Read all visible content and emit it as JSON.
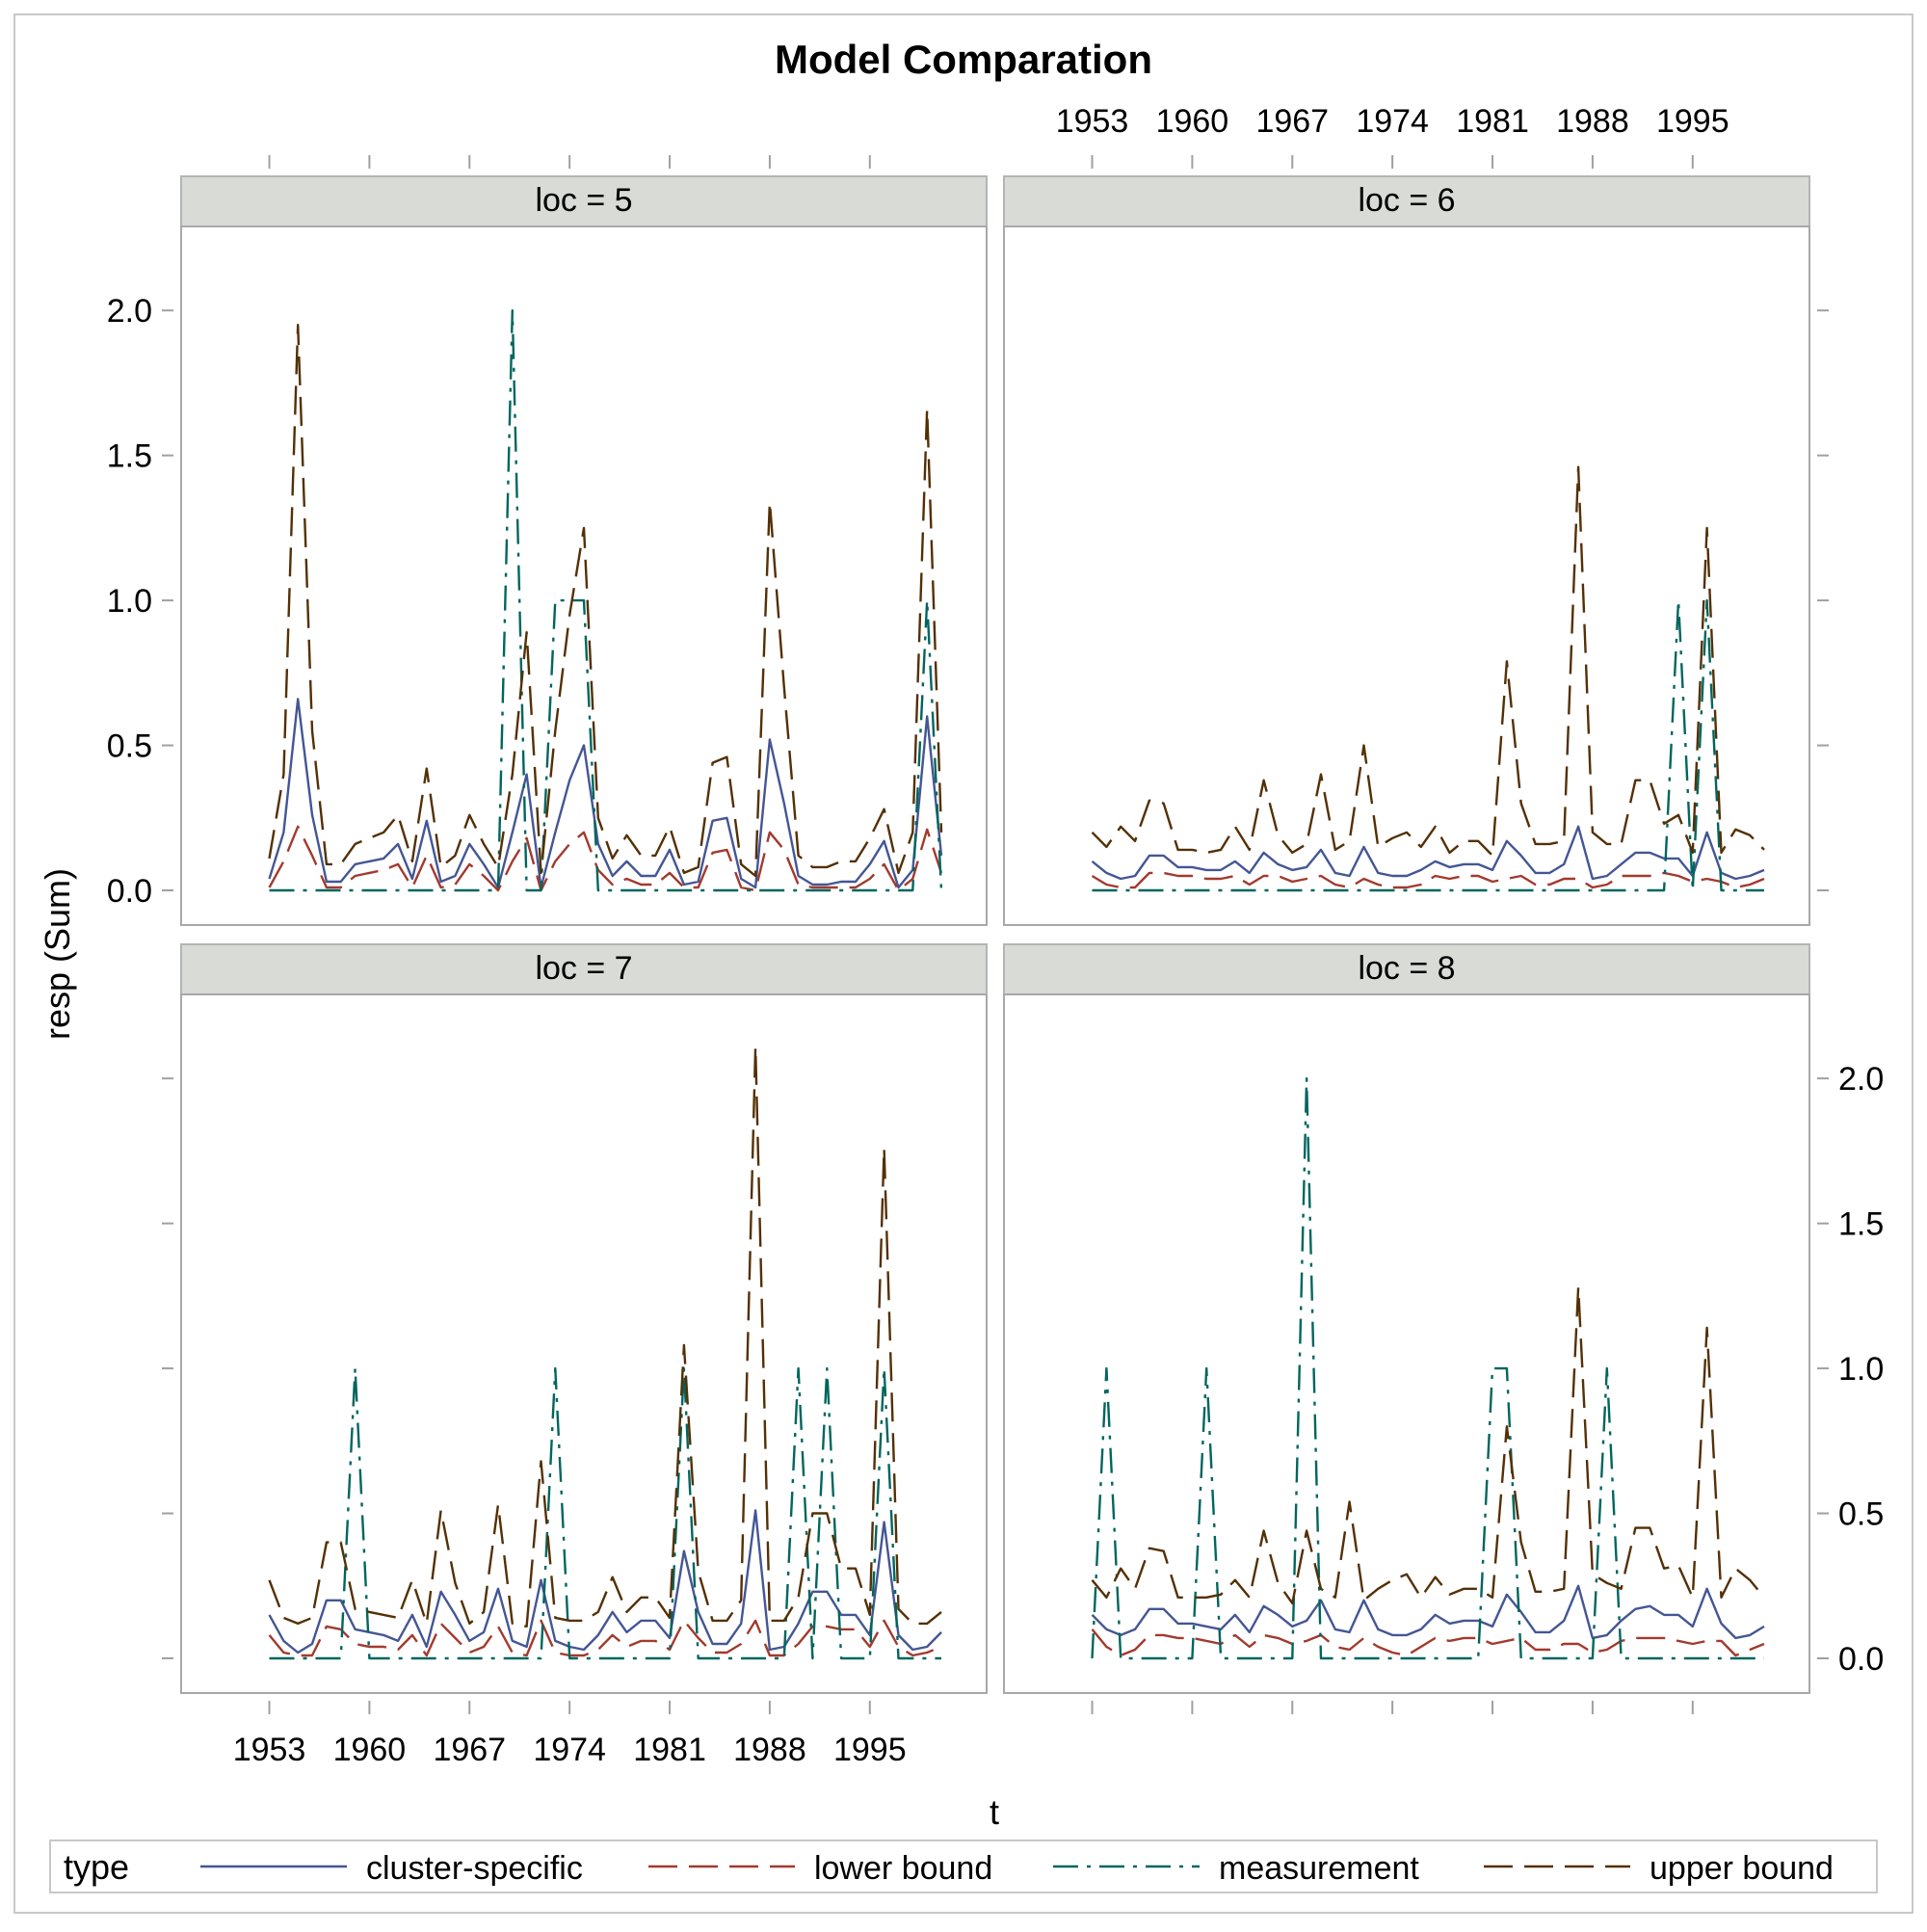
{
  "chart_data": {
    "type": "line",
    "title": "Model Comparation",
    "xlabel": "t",
    "ylabel": "resp (Sum)",
    "x_ticks": [
      "1953",
      "1960",
      "1967",
      "1974",
      "1981",
      "1988",
      "1995"
    ],
    "x_tick_values": [
      1953,
      1960,
      1967,
      1974,
      1981,
      1988,
      1995
    ],
    "xlim": [
      1950,
      2000
    ],
    "y_ticks": [
      "0.0",
      "0.5",
      "1.0",
      "1.5",
      "2.0"
    ],
    "y_tick_values": [
      0,
      0.5,
      1,
      1.5,
      2
    ],
    "ylim": [
      0,
      2.2
    ],
    "grid": false,
    "legend": {
      "title": "type",
      "placement": "bottom",
      "entries": [
        "cluster-specific",
        "lower bound",
        "measurement",
        "upper bound"
      ]
    },
    "series_styles": [
      {
        "name": "cluster-specific",
        "color": "#445694",
        "dash": "solid"
      },
      {
        "name": "lower bound",
        "color": "#A23A2E",
        "dash": "long-dash"
      },
      {
        "name": "measurement",
        "color": "#01665E",
        "dash": "dash-dot"
      },
      {
        "name": "upper bound",
        "color": "#543005",
        "dash": "long-dash"
      }
    ],
    "x": [
      1953,
      1954,
      1955,
      1956,
      1957,
      1958,
      1959,
      1960,
      1961,
      1962,
      1963,
      1964,
      1965,
      1966,
      1967,
      1968,
      1969,
      1970,
      1971,
      1972,
      1973,
      1974,
      1975,
      1976,
      1977,
      1978,
      1979,
      1980,
      1981,
      1982,
      1983,
      1984,
      1985,
      1986,
      1987,
      1988,
      1989,
      1990,
      1991,
      1992,
      1993,
      1994,
      1995,
      1996,
      1997,
      1998,
      1999,
      2000
    ],
    "panels": [
      {
        "label": "loc = 5",
        "series": [
          {
            "name": "cluster-specific",
            "values": [
              0.04,
              0.2,
              0.66,
              0.26,
              0.03,
              0.03,
              0.09,
              0.1,
              0.11,
              0.16,
              0.04,
              0.24,
              0.03,
              0.05,
              0.16,
              0.09,
              0.01,
              0.2,
              0.4,
              0.01,
              0.2,
              0.38,
              0.5,
              0.16,
              0.05,
              0.1,
              0.05,
              0.05,
              0.14,
              0.02,
              0.03,
              0.24,
              0.25,
              0.04,
              0.01,
              0.52,
              0.3,
              0.05,
              0.02,
              0.02,
              0.03,
              0.03,
              0.09,
              0.17,
              0.01,
              0.07,
              0.6,
              0.12
            ]
          },
          {
            "name": "lower bound",
            "values": [
              0.01,
              0.1,
              0.22,
              0.12,
              0.01,
              0.01,
              0.05,
              0.06,
              0.07,
              0.09,
              0.01,
              0.12,
              0.01,
              0.02,
              0.09,
              0.05,
              0.0,
              0.1,
              0.18,
              0.0,
              0.1,
              0.16,
              0.2,
              0.07,
              0.02,
              0.04,
              0.02,
              0.02,
              0.06,
              0.01,
              0.01,
              0.13,
              0.14,
              0.01,
              0.0,
              0.2,
              0.14,
              0.02,
              0.01,
              0.01,
              0.01,
              0.01,
              0.04,
              0.09,
              0.0,
              0.04,
              0.21,
              0.06
            ]
          },
          {
            "name": "measurement",
            "values": [
              0,
              0,
              0,
              0,
              0,
              0,
              0,
              0,
              0,
              0,
              0,
              0,
              0,
              0,
              0,
              0,
              0,
              2,
              0,
              0,
              1,
              1,
              1,
              0,
              0,
              0,
              0,
              0,
              0,
              0,
              0,
              0,
              0,
              0,
              0,
              0,
              0,
              0,
              0,
              0,
              0,
              0,
              0,
              0,
              0,
              0,
              1,
              0
            ]
          },
          {
            "name": "upper bound",
            "values": [
              0.11,
              0.4,
              1.95,
              0.55,
              0.09,
              0.09,
              0.16,
              0.18,
              0.2,
              0.26,
              0.1,
              0.42,
              0.08,
              0.12,
              0.26,
              0.16,
              0.08,
              0.4,
              0.89,
              0.06,
              0.55,
              0.95,
              1.25,
              0.25,
              0.11,
              0.19,
              0.12,
              0.12,
              0.22,
              0.06,
              0.08,
              0.44,
              0.46,
              0.09,
              0.05,
              1.34,
              0.7,
              0.12,
              0.08,
              0.08,
              0.1,
              0.1,
              0.18,
              0.28,
              0.06,
              0.2,
              1.66,
              0.2
            ]
          }
        ]
      },
      {
        "label": "loc = 6",
        "series": [
          {
            "name": "cluster-specific",
            "values": [
              0.1,
              0.06,
              0.04,
              0.05,
              0.12,
              0.12,
              0.08,
              0.08,
              0.07,
              0.07,
              0.1,
              0.06,
              0.13,
              0.09,
              0.07,
              0.08,
              0.14,
              0.06,
              0.05,
              0.15,
              0.06,
              0.05,
              0.05,
              0.07,
              0.1,
              0.08,
              0.09,
              0.09,
              0.07,
              0.17,
              0.12,
              0.06,
              0.06,
              0.09,
              0.22,
              0.04,
              0.05,
              0.09,
              0.13,
              0.13,
              0.11,
              0.11,
              0.05,
              0.2,
              0.06,
              0.04,
              0.05,
              0.07
            ]
          },
          {
            "name": "lower bound",
            "values": [
              0.05,
              0.02,
              0.01,
              0.01,
              0.06,
              0.06,
              0.05,
              0.05,
              0.04,
              0.04,
              0.05,
              0.02,
              0.05,
              0.05,
              0.03,
              0.04,
              0.05,
              0.02,
              0.01,
              0.04,
              0.02,
              0.01,
              0.01,
              0.02,
              0.05,
              0.04,
              0.05,
              0.05,
              0.03,
              0.04,
              0.05,
              0.02,
              0.02,
              0.04,
              0.04,
              0.01,
              0.02,
              0.05,
              0.05,
              0.05,
              0.06,
              0.05,
              0.03,
              0.04,
              0.03,
              0.01,
              0.02,
              0.04
            ]
          },
          {
            "name": "measurement",
            "values": [
              0,
              0,
              0,
              0,
              0,
              0,
              0,
              0,
              0,
              0,
              0,
              0,
              0,
              0,
              0,
              0,
              0,
              0,
              0,
              0,
              0,
              0,
              0,
              0,
              0,
              0,
              0,
              0,
              0,
              0,
              0,
              0,
              0,
              0,
              0,
              0,
              0,
              0,
              0,
              0,
              0,
              1,
              0,
              1,
              0,
              0,
              0,
              0
            ]
          },
          {
            "name": "upper bound",
            "values": [
              0.2,
              0.15,
              0.22,
              0.17,
              0.31,
              0.3,
              0.14,
              0.14,
              0.13,
              0.14,
              0.22,
              0.14,
              0.38,
              0.19,
              0.13,
              0.16,
              0.4,
              0.14,
              0.17,
              0.5,
              0.15,
              0.18,
              0.2,
              0.15,
              0.22,
              0.13,
              0.17,
              0.17,
              0.12,
              0.79,
              0.3,
              0.16,
              0.16,
              0.17,
              1.46,
              0.2,
              0.16,
              0.16,
              0.38,
              0.38,
              0.23,
              0.26,
              0.13,
              1.25,
              0.13,
              0.21,
              0.19,
              0.14
            ]
          }
        ]
      },
      {
        "label": "loc = 7",
        "series": [
          {
            "name": "cluster-specific",
            "values": [
              0.15,
              0.06,
              0.02,
              0.05,
              0.2,
              0.2,
              0.1,
              0.09,
              0.08,
              0.06,
              0.15,
              0.04,
              0.23,
              0.15,
              0.06,
              0.09,
              0.24,
              0.06,
              0.04,
              0.27,
              0.06,
              0.04,
              0.03,
              0.08,
              0.16,
              0.09,
              0.13,
              0.13,
              0.07,
              0.37,
              0.16,
              0.05,
              0.05,
              0.12,
              0.51,
              0.03,
              0.04,
              0.12,
              0.23,
              0.23,
              0.15,
              0.15,
              0.08,
              0.47,
              0.08,
              0.03,
              0.04,
              0.09
            ]
          },
          {
            "name": "lower bound",
            "values": [
              0.08,
              0.02,
              0.01,
              0.01,
              0.11,
              0.1,
              0.05,
              0.04,
              0.04,
              0.03,
              0.08,
              0.01,
              0.12,
              0.07,
              0.02,
              0.04,
              0.11,
              0.02,
              0.01,
              0.13,
              0.02,
              0.01,
              0.01,
              0.03,
              0.08,
              0.04,
              0.06,
              0.06,
              0.03,
              0.13,
              0.07,
              0.02,
              0.02,
              0.05,
              0.13,
              0.01,
              0.01,
              0.05,
              0.11,
              0.11,
              0.1,
              0.1,
              0.04,
              0.13,
              0.04,
              0.01,
              0.02,
              0.04
            ]
          },
          {
            "name": "measurement",
            "values": [
              0,
              0,
              0,
              0,
              0,
              0,
              1,
              0,
              0,
              0,
              0,
              0,
              0,
              0,
              0,
              0,
              0,
              0,
              0,
              0,
              1,
              0,
              0,
              0,
              0,
              0,
              0,
              0,
              0,
              1,
              0,
              0,
              0,
              0,
              0,
              0,
              0,
              1,
              0,
              1,
              0,
              0,
              0,
              1,
              0,
              0,
              0,
              0
            ]
          },
          {
            "name": "upper bound",
            "values": [
              0.27,
              0.14,
              0.12,
              0.14,
              0.4,
              0.4,
              0.17,
              0.16,
              0.15,
              0.14,
              0.27,
              0.12,
              0.51,
              0.26,
              0.12,
              0.16,
              0.53,
              0.12,
              0.11,
              0.68,
              0.14,
              0.13,
              0.13,
              0.16,
              0.28,
              0.16,
              0.21,
              0.21,
              0.14,
              1.08,
              0.3,
              0.13,
              0.13,
              0.2,
              2.11,
              0.13,
              0.13,
              0.21,
              0.5,
              0.5,
              0.31,
              0.31,
              0.15,
              1.76,
              0.17,
              0.12,
              0.12,
              0.16
            ]
          }
        ]
      },
      {
        "label": "loc = 8",
        "series": [
          {
            "name": "cluster-specific",
            "values": [
              0.15,
              0.1,
              0.08,
              0.1,
              0.17,
              0.17,
              0.12,
              0.12,
              0.11,
              0.1,
              0.15,
              0.09,
              0.18,
              0.15,
              0.11,
              0.13,
              0.2,
              0.1,
              0.09,
              0.2,
              0.1,
              0.08,
              0.08,
              0.1,
              0.15,
              0.12,
              0.13,
              0.13,
              0.11,
              0.22,
              0.16,
              0.09,
              0.09,
              0.13,
              0.25,
              0.07,
              0.08,
              0.13,
              0.17,
              0.18,
              0.15,
              0.15,
              0.11,
              0.24,
              0.12,
              0.07,
              0.08,
              0.11
            ]
          },
          {
            "name": "lower bound",
            "values": [
              0.1,
              0.04,
              0.01,
              0.03,
              0.08,
              0.08,
              0.07,
              0.07,
              0.06,
              0.05,
              0.08,
              0.04,
              0.08,
              0.07,
              0.05,
              0.06,
              0.08,
              0.04,
              0.03,
              0.07,
              0.04,
              0.02,
              0.01,
              0.04,
              0.07,
              0.06,
              0.07,
              0.07,
              0.05,
              0.06,
              0.07,
              0.03,
              0.03,
              0.05,
              0.05,
              0.02,
              0.03,
              0.06,
              0.07,
              0.07,
              0.07,
              0.06,
              0.05,
              0.06,
              0.06,
              0.01,
              0.03,
              0.05
            ]
          },
          {
            "name": "measurement",
            "values": [
              0,
              1,
              0,
              0,
              0,
              0,
              0,
              0,
              1,
              0,
              0,
              0,
              0,
              0,
              0,
              2,
              0,
              0,
              0,
              0,
              0,
              0,
              0,
              0,
              0,
              0,
              0,
              0,
              1,
              1,
              0,
              0,
              0,
              0,
              0,
              0,
              1,
              0,
              0,
              0,
              0,
              0,
              0,
              0,
              0,
              0,
              0,
              0
            ]
          },
          {
            "name": "upper bound",
            "values": [
              0.27,
              0.21,
              0.31,
              0.24,
              0.38,
              0.37,
              0.21,
              0.21,
              0.21,
              0.22,
              0.27,
              0.21,
              0.44,
              0.26,
              0.19,
              0.44,
              0.24,
              0.21,
              0.54,
              0.2,
              0.24,
              0.27,
              0.29,
              0.21,
              0.28,
              0.22,
              0.24,
              0.24,
              0.21,
              0.8,
              0.4,
              0.23,
              0.23,
              0.24,
              1.28,
              0.29,
              0.26,
              0.24,
              0.45,
              0.45,
              0.31,
              0.32,
              0.21,
              1.14,
              0.21,
              0.31,
              0.27,
              0.21
            ]
          }
        ]
      }
    ]
  }
}
